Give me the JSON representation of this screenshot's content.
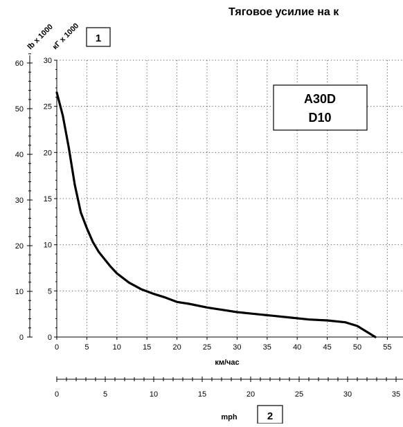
{
  "chart_data": {
    "type": "line",
    "title": "Тяговое усилие на к",
    "legend_lines": [
      "A30D",
      "D10"
    ],
    "legend_placement": "top-right",
    "grid": true,
    "x_axis_kmh": {
      "label": "км/час",
      "range": [
        0,
        55
      ],
      "ticks": [
        0,
        5,
        10,
        15,
        20,
        25,
        30,
        35,
        40,
        45,
        50,
        55
      ]
    },
    "x_axis_mph": {
      "label": "mph",
      "range": [
        0,
        35
      ],
      "ticks": [
        0,
        5,
        10,
        15,
        20,
        25,
        30,
        35
      ]
    },
    "y_axis_kgf": {
      "label": "кГ x 1000",
      "range": [
        0,
        30
      ],
      "ticks": [
        0,
        5,
        10,
        15,
        20,
        25,
        30
      ]
    },
    "y_axis_lb": {
      "label": "lb x 1000",
      "range": [
        0,
        60
      ],
      "ticks": [
        0,
        10,
        20,
        30,
        40,
        50,
        60
      ]
    },
    "series": [
      {
        "x": [
          0,
          1,
          2,
          3,
          4,
          5,
          6,
          7,
          8,
          9,
          10,
          12,
          14,
          16,
          18,
          20,
          22,
          25,
          28,
          30,
          33,
          36,
          39,
          42,
          45,
          48,
          50,
          53
        ],
        "y": [
          26.5,
          24,
          20.5,
          16.5,
          13.5,
          11.8,
          10.3,
          9.2,
          8.4,
          7.6,
          6.9,
          5.9,
          5.2,
          4.7,
          4.3,
          3.8,
          3.6,
          3.2,
          2.9,
          2.7,
          2.5,
          2.3,
          2.1,
          1.9,
          1.8,
          1.6,
          1.2,
          0
        ]
      }
    ]
  },
  "markers": {
    "top_box": "1",
    "bottom_box": "2"
  }
}
